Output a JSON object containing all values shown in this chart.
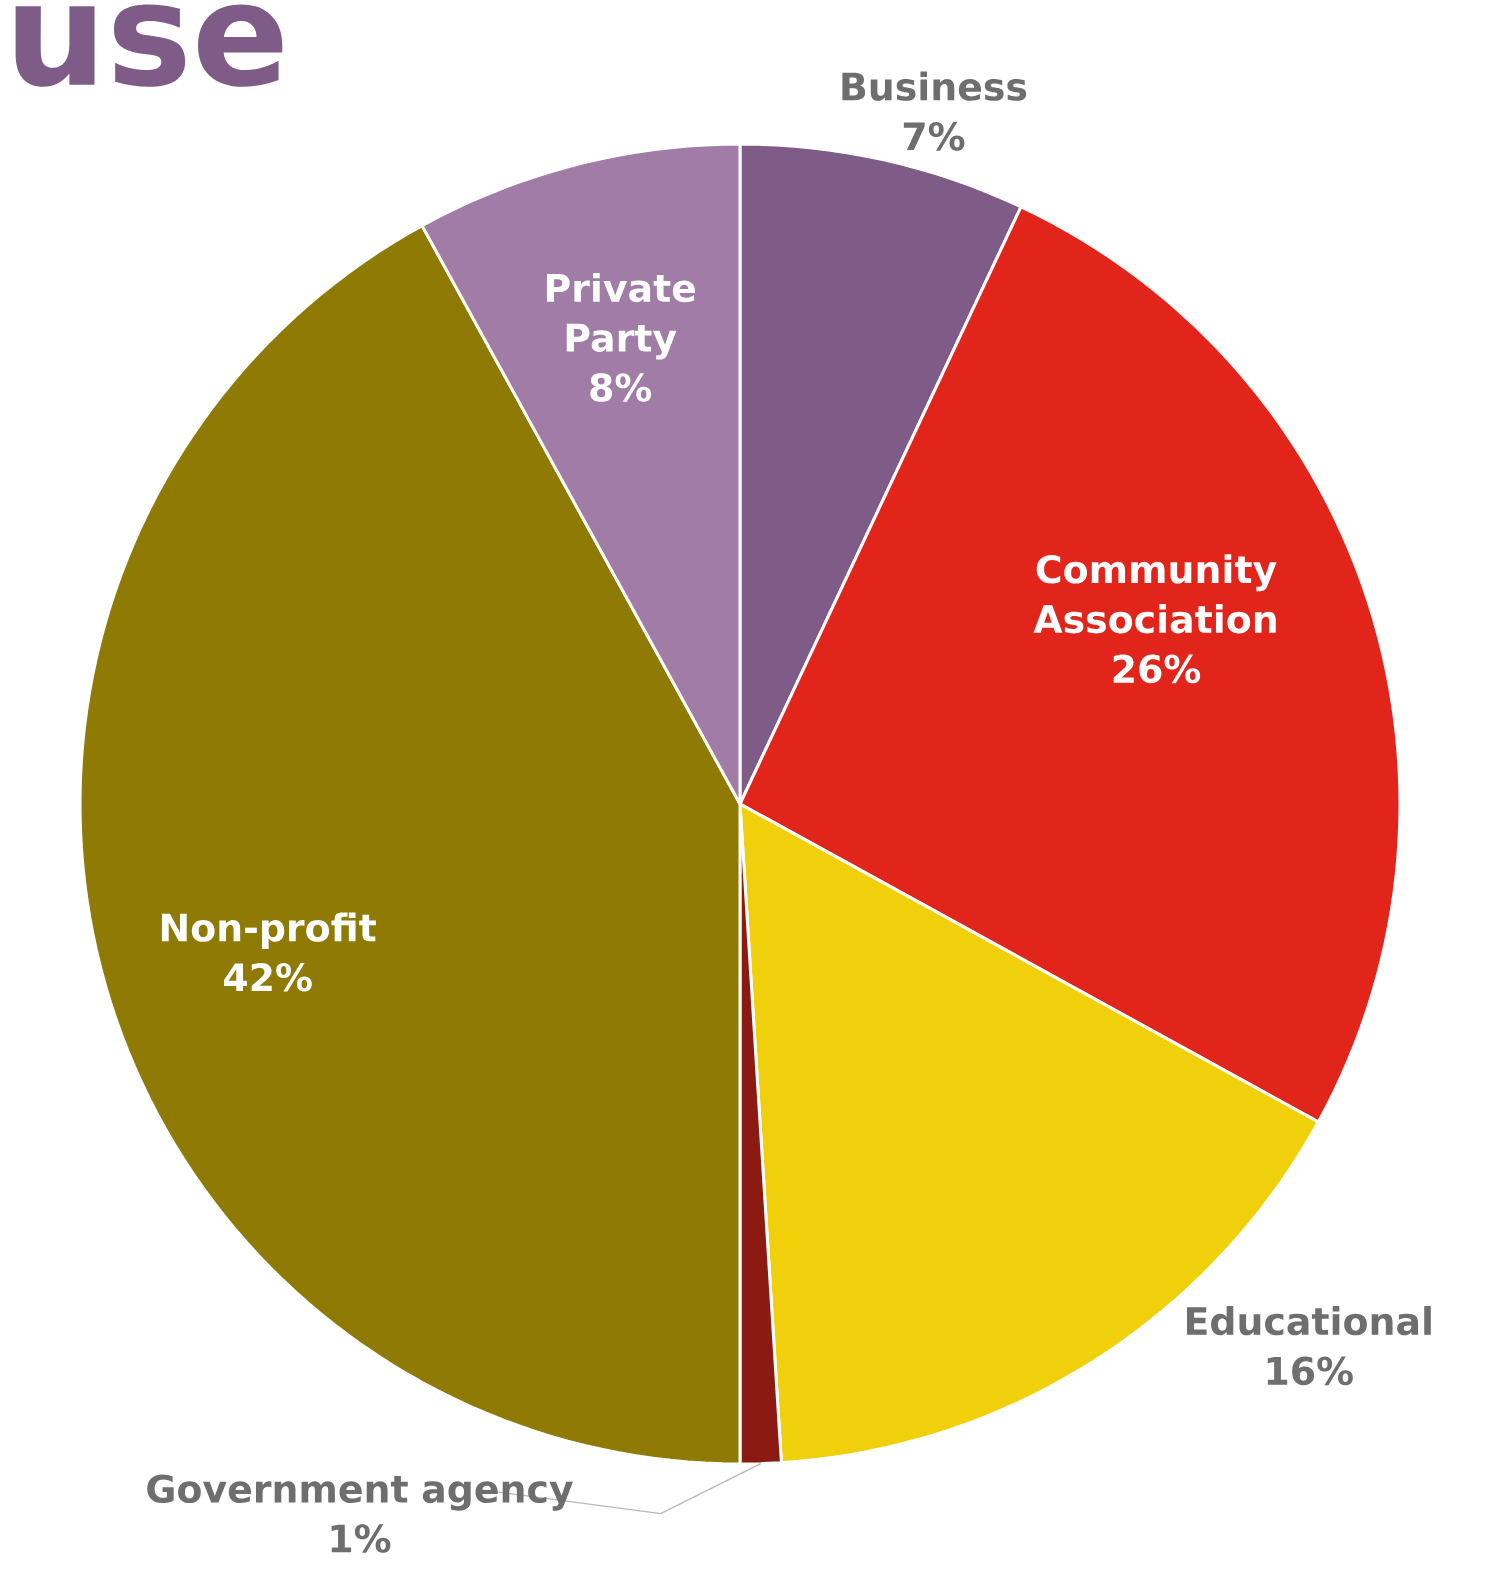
{
  "chart_data": {
    "type": "pie",
    "title": "use",
    "categories": [
      "Business",
      "Community Association",
      "Educational",
      "Government agency",
      "Non-profit",
      "Private Party"
    ],
    "values": [
      7,
      26,
      16,
      1,
      42,
      8
    ],
    "colors": [
      "#7f5c87",
      "#e1251b",
      "#f0cf0b",
      "#8b1a13",
      "#8f7a05",
      "#a07ca6"
    ],
    "data_labels": true,
    "value_labels": [
      "7%",
      "26%",
      "16%",
      "1%",
      "42%",
      "8%"
    ]
  }
}
